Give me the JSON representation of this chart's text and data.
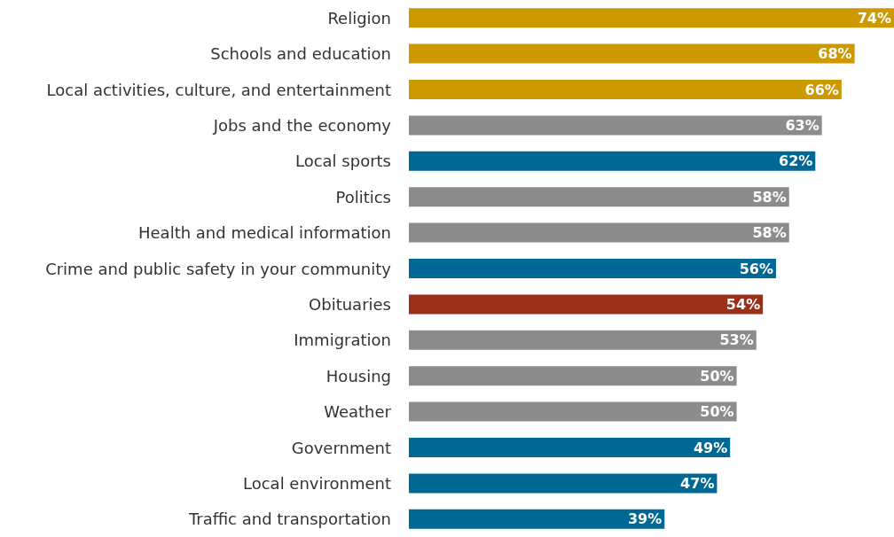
{
  "chart_data": {
    "type": "bar",
    "orientation": "horizontal",
    "categories": [
      "Religion",
      "Schools and education",
      "Local activities, culture, and entertainment",
      "Jobs and the economy",
      "Local sports",
      "Politics",
      "Health and medical information",
      "Crime and public safety in your community",
      "Obituaries",
      "Immigration",
      "Housing",
      "Weather",
      "Government",
      "Local environment",
      "Traffic and transportation"
    ],
    "values": [
      74,
      68,
      66,
      63,
      62,
      58,
      58,
      56,
      54,
      53,
      50,
      50,
      49,
      47,
      39
    ],
    "value_labels": [
      "74%",
      "68%",
      "66%",
      "63%",
      "62%",
      "58%",
      "58%",
      "56%",
      "54%",
      "53%",
      "50%",
      "50%",
      "49%",
      "47%",
      "39%"
    ],
    "colors": [
      "#cc9900",
      "#cc9900",
      "#cc9900",
      "#8c8c8c",
      "#006894",
      "#8c8c8c",
      "#8c8c8c",
      "#006894",
      "#9b2f1a",
      "#8c8c8c",
      "#8c8c8c",
      "#8c8c8c",
      "#006894",
      "#006894",
      "#006894"
    ],
    "title": null
  }
}
